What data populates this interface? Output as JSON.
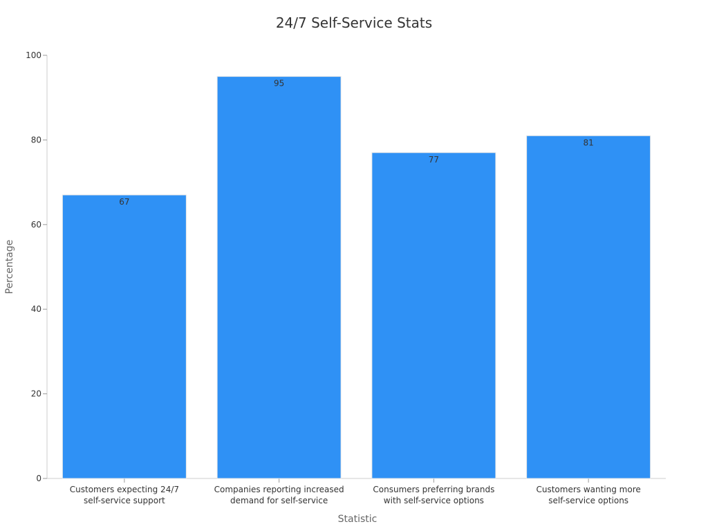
{
  "chart_data": {
    "type": "bar",
    "title": "24/7 Self-Service Stats",
    "xlabel": "Statistic",
    "ylabel": "Percentage",
    "ylim": [
      0,
      100
    ],
    "yticks": [
      "0",
      "20",
      "40",
      "60",
      "80",
      "100"
    ],
    "categories": [
      [
        "Customers expecting 24/7",
        "self-service support"
      ],
      [
        "Companies reporting increased",
        "demand for self-service"
      ],
      [
        "Consumers preferring brands",
        "with self-service options"
      ],
      [
        "Customers wanting more",
        "self-service options"
      ]
    ],
    "values": [
      67,
      95,
      77,
      81
    ],
    "data_labels": [
      "67",
      "95",
      "77",
      "81"
    ],
    "bar_color": "#2f91f5",
    "grid": false,
    "legend": "none"
  }
}
